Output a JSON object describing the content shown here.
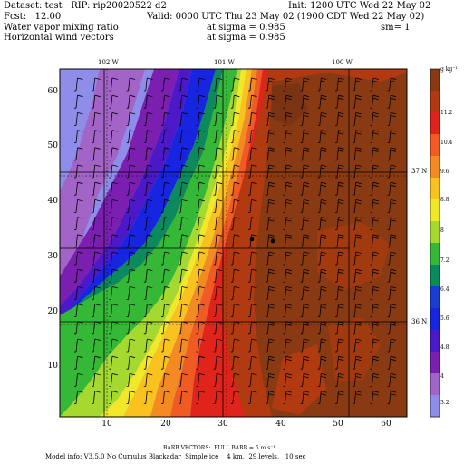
{
  "header": {
    "dataset": "Dataset: test   RIP: rip20020522 d2",
    "init": "Init: 1200 UTC Wed 22 May 02",
    "fcst": "Fcst:   12.00",
    "valid": "Valid: 0000 UTC Thu 23 May 02 (1900 CDT Wed 22 May 02)",
    "field1": "Water vapor mixing ratio",
    "sigma1": "at sigma = 0.985",
    "sm": "sm= 1",
    "field2": "Horizontal wind vectors",
    "sigma2": "at sigma = 0.985"
  },
  "longitude_labels": [
    "102 W",
    "101 W",
    "100 W"
  ],
  "latitude_labels": [
    "37 N",
    "36 N"
  ],
  "x_ticks": [
    "10",
    "20",
    "30",
    "40",
    "50",
    "60"
  ],
  "y_ticks": [
    "60",
    "50",
    "40",
    "30",
    "20",
    "10"
  ],
  "legend": {
    "unit": "g kg⁻¹",
    "labels": [
      "11.2",
      "10.4",
      "9.6",
      "8.8",
      "8",
      "7.2",
      "6.4",
      "5.6",
      "4.8",
      "4",
      "3.2"
    ],
    "colors": [
      "#8a3a12",
      "#b23a10",
      "#e0231b",
      "#f05a23",
      "#f48a22",
      "#f9c21e",
      "#f2e82a",
      "#a6d92f",
      "#36b837",
      "#0c8a5e",
      "#1b3ed0",
      "#1825e0",
      "#4b19c7",
      "#7a1fb0",
      "#a364c8",
      "#8f8dea"
    ]
  },
  "barb_note": "BARB VECTORS:  FULL BARB = 5 m s⁻¹",
  "footer": "Model info: V3.5.0 No Cumulus Blackadar  Simple ice    4 km,  29 levels,   10 sec",
  "chart_data": {
    "type": "heatmap",
    "title": "Water vapor mixing ratio at sigma = 0.985",
    "x_range": [
      1,
      63
    ],
    "y_range": [
      1,
      63
    ],
    "x_ticks": [
      10,
      20,
      30,
      40,
      50,
      60
    ],
    "y_ticks": [
      10,
      20,
      30,
      40,
      50,
      60
    ],
    "color_levels": [
      3.2,
      4,
      4.8,
      5.6,
      6.4,
      7.2,
      8,
      8.8,
      9.6,
      10.4,
      11.2
    ],
    "overlay": "Horizontal wind barbs, full barb = 5 m/s"
  }
}
